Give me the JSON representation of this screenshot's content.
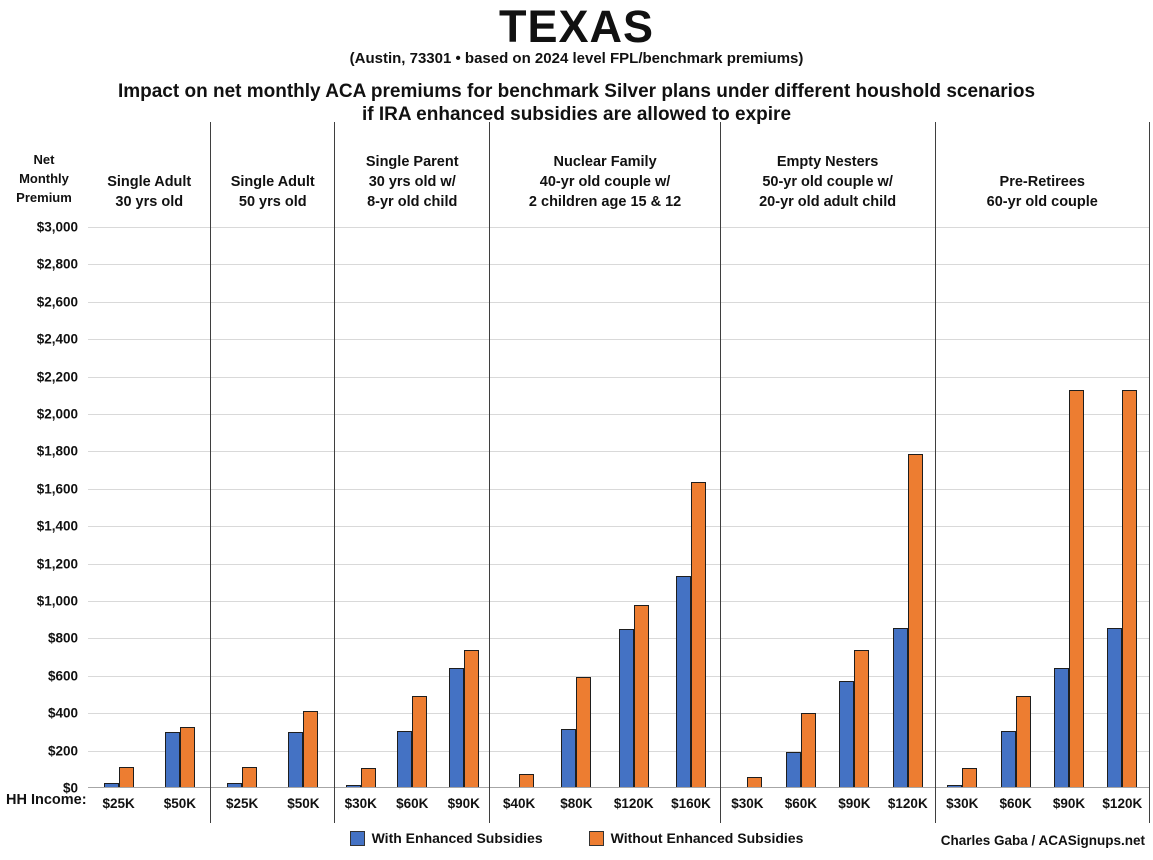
{
  "title": "TEXAS",
  "subtitle": "(Austin, 73301 • based on 2024 level FPL/benchmark premiums)",
  "heading": {
    "line1": "Impact on net monthly ACA premiums for benchmark Silver plans under different houshold scenarios",
    "line2": "if IRA enhanced subsidies are allowed to expire"
  },
  "axis": {
    "y_title_lines": [
      "Net",
      "Monthly",
      "Premium"
    ],
    "x_title": "HH Income:"
  },
  "legend": {
    "items": [
      {
        "label": "With Enhanced Subsidies",
        "color": "#4472C4"
      },
      {
        "label": "Without Enhanced Subsidies",
        "color": "#ED7D31"
      }
    ]
  },
  "credit": "Charles Gaba / ACASignups.net",
  "chart_data": {
    "type": "bar",
    "title": "Impact on net monthly ACA premiums for benchmark Silver plans under different houshold scenarios if IRA enhanced subsidies are allowed to expire",
    "location": "TEXAS (Austin, 73301)",
    "ylabel": "Net Monthly Premium",
    "xlabel": "HH Income",
    "ylim": [
      0,
      3000
    ],
    "ytick_interval": 200,
    "ytick_labels": [
      "$0",
      "$200",
      "$400",
      "$600",
      "$800",
      "$1,000",
      "$1,200",
      "$1,400",
      "$1,600",
      "$1,800",
      "$2,000",
      "$2,200",
      "$2,400",
      "$2,600",
      "$2,800",
      "$3,000"
    ],
    "grid": true,
    "legend_position": "bottom",
    "series_names": [
      "With Enhanced Subsidies",
      "Without Enhanced Subsidies"
    ],
    "colors": {
      "with": "#4472C4",
      "without": "#ED7D31"
    },
    "groups": [
      {
        "label_lines": [
          "Single Adult",
          "30 yrs old"
        ],
        "bars": [
          {
            "income": "$25K",
            "with": 20,
            "without": 105
          },
          {
            "income": "$50K",
            "with": 295,
            "without": 320
          }
        ]
      },
      {
        "label_lines": [
          "Single Adult",
          "50 yrs old"
        ],
        "bars": [
          {
            "income": "$25K",
            "with": 20,
            "without": 105
          },
          {
            "income": "$50K",
            "with": 295,
            "without": 405
          }
        ]
      },
      {
        "label_lines": [
          "Single Parent",
          "30 yrs old w/",
          "8-yr old child"
        ],
        "bars": [
          {
            "income": "$30K",
            "with": 10,
            "without": 100
          },
          {
            "income": "$60K",
            "with": 300,
            "without": 485
          },
          {
            "income": "$90K",
            "with": 635,
            "without": 735
          }
        ]
      },
      {
        "label_lines": [
          "Nuclear Family",
          "40-yr old couple w/",
          "2 children age 15 & 12"
        ],
        "bars": [
          {
            "income": "$40K",
            "with": 0,
            "without": 70
          },
          {
            "income": "$80K",
            "with": 310,
            "without": 590
          },
          {
            "income": "$120K",
            "with": 845,
            "without": 975
          },
          {
            "income": "$160K",
            "with": 1130,
            "without": 1630
          }
        ]
      },
      {
        "label_lines": [
          "Empty Nesters",
          "50-yr old couple w/",
          "20-yr old adult child"
        ],
        "bars": [
          {
            "income": "$30K",
            "with": 0,
            "without": 55
          },
          {
            "income": "$60K",
            "with": 185,
            "without": 395
          },
          {
            "income": "$90K",
            "with": 565,
            "without": 730
          },
          {
            "income": "$120K",
            "with": 850,
            "without": 1780
          }
        ]
      },
      {
        "label_lines": [
          "Pre-Retirees",
          "60-yr old couple"
        ],
        "bars": [
          {
            "income": "$30K",
            "with": 10,
            "without": 100
          },
          {
            "income": "$60K",
            "with": 300,
            "without": 485
          },
          {
            "income": "$90K",
            "with": 635,
            "without": 2125
          },
          {
            "income": "$120K",
            "with": 850,
            "without": 2125
          }
        ]
      }
    ]
  }
}
